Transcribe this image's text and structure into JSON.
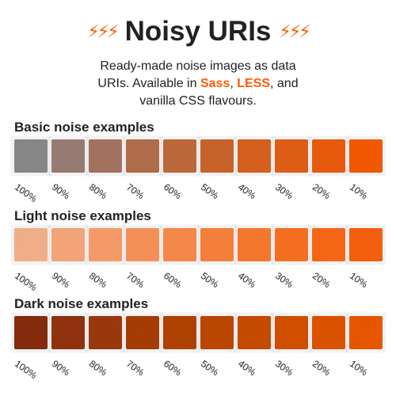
{
  "header": {
    "title": "Noisy URIs",
    "left_icon": "lightning-bolts-icon",
    "right_icon": "lightning-bolts-icon",
    "bolts_glyph": "⚡⚡⚡",
    "subtitle_line1": "Ready-made noise images as data",
    "subtitle_line2_a": "URIs. Available in ",
    "subtitle_sass": "Sass",
    "subtitle_comma": ", ",
    "subtitle_less": "LESS",
    "subtitle_line2_b": ", and",
    "subtitle_line3": "vanilla CSS flavours.",
    "accent_color": "#ff5b00"
  },
  "sections": [
    {
      "title": "Basic noise examples",
      "labels": [
        "100%",
        "90%",
        "80%",
        "70%",
        "60%",
        "50%",
        "40%",
        "30%",
        "20%",
        "10%"
      ],
      "colors": [
        "#8c8c8c",
        "#9b8076",
        "#a97663",
        "#b6714f",
        "#c36c3c",
        "#cf672c",
        "#dc6420",
        "#e66115",
        "#f05e0b",
        "#fb5c02"
      ]
    },
    {
      "title": "Light noise examples",
      "labels": [
        "100%",
        "90%",
        "80%",
        "70%",
        "60%",
        "50%",
        "40%",
        "30%",
        "20%",
        "10%"
      ],
      "colors": [
        "#f9b58e",
        "#fcaa7d",
        "#fda06c",
        "#fe965b",
        "#fe8d4c",
        "#fe843d",
        "#fe7b2f",
        "#fe7323",
        "#fe6b17",
        "#fe630b"
      ]
    },
    {
      "title": "Dark noise examples",
      "labels": [
        "100%",
        "90%",
        "80%",
        "70%",
        "60%",
        "50%",
        "40%",
        "30%",
        "20%",
        "10%"
      ],
      "colors": [
        "#8a2e08",
        "#953408",
        "#a03a08",
        "#ab3f07",
        "#b64406",
        "#c14905",
        "#cc4e04",
        "#d85203",
        "#e35602",
        "#ef5a01"
      ]
    }
  ]
}
